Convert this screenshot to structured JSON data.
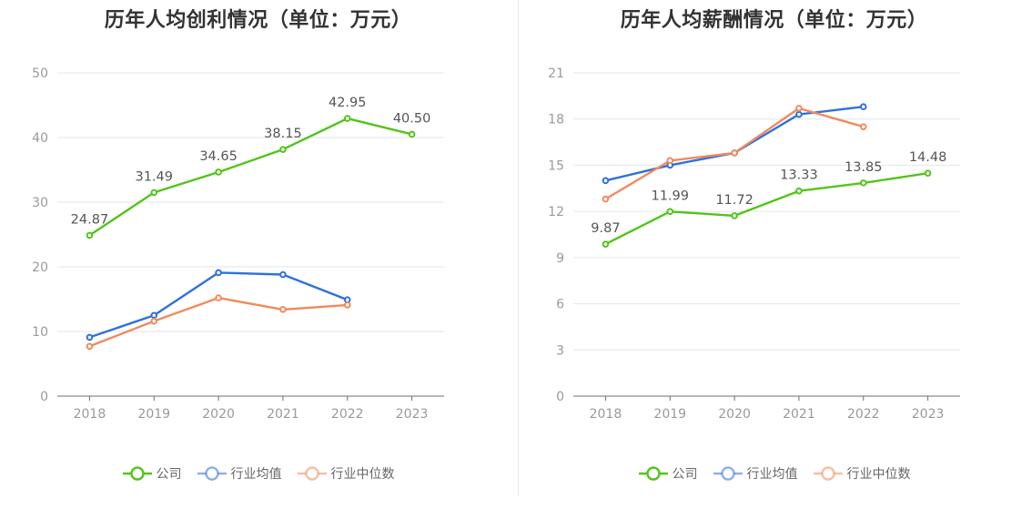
{
  "legend": [
    "公司",
    "行业均值",
    "行业中位数"
  ],
  "colors": {
    "company": "#52c41a",
    "avg": "#3071d9",
    "median": "#f08a5d",
    "grid": "#e3e6ee",
    "axis": "#6e6e6e"
  },
  "charts": [
    {
      "title": "历年人均创利情况（单位：万元）"
    },
    {
      "title": "历年人均薪酬情况（单位：万元）"
    }
  ],
  "chart_data": [
    {
      "type": "line",
      "title": "历年人均创利情况（单位：万元）",
      "categories": [
        "2018",
        "2019",
        "2020",
        "2021",
        "2022",
        "2023"
      ],
      "ylim": [
        0,
        50
      ],
      "yticks": [
        0,
        10,
        20,
        30,
        40,
        50
      ],
      "grid": true,
      "legend_position": "bottom",
      "series": [
        {
          "name": "公司",
          "values": [
            24.87,
            31.49,
            34.65,
            38.15,
            42.95,
            40.5
          ],
          "labels": [
            "24.87",
            "31.49",
            "34.65",
            "38.15",
            "42.95",
            "40.50"
          ]
        },
        {
          "name": "行业均值",
          "values": [
            9.1,
            12.5,
            19.1,
            18.8,
            14.9,
            null
          ]
        },
        {
          "name": "行业中位数",
          "values": [
            7.7,
            11.6,
            15.2,
            13.4,
            14.1,
            null
          ]
        }
      ]
    },
    {
      "type": "line",
      "title": "历年人均薪酬情况（单位：万元）",
      "categories": [
        "2018",
        "2019",
        "2020",
        "2021",
        "2022",
        "2023"
      ],
      "ylim": [
        0,
        21
      ],
      "yticks": [
        0,
        3,
        6,
        9,
        12,
        15,
        18,
        21
      ],
      "grid": true,
      "legend_position": "bottom",
      "series": [
        {
          "name": "公司",
          "values": [
            9.87,
            11.99,
            11.72,
            13.33,
            13.85,
            14.48
          ],
          "labels": [
            "9.87",
            "11.99",
            "11.72",
            "13.33",
            "13.85",
            "14.48"
          ]
        },
        {
          "name": "行业均值",
          "values": [
            14.0,
            15.0,
            15.8,
            18.3,
            18.8,
            null
          ]
        },
        {
          "name": "行业中位数",
          "values": [
            12.8,
            15.3,
            15.8,
            18.7,
            17.5,
            null
          ]
        }
      ]
    }
  ]
}
